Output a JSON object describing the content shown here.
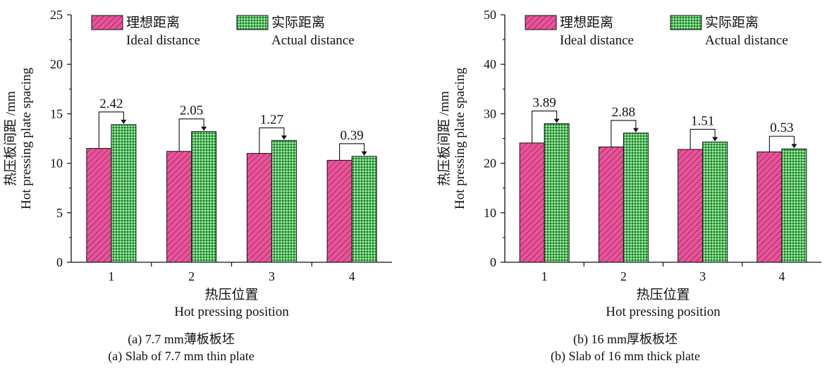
{
  "colors": {
    "ideal": "#e8549a",
    "actual": "#39b54a",
    "axis": "#111111"
  },
  "chart_data": [
    {
      "type": "bar",
      "categories": [
        "1",
        "2",
        "3",
        "4"
      ],
      "ylim": [
        0,
        25
      ],
      "yticks": [
        "0",
        "5",
        "10",
        "15",
        "20",
        "25"
      ],
      "ylabel_cn": "热压板间距 /mm",
      "ylabel_en": "Hot pressing plate spacing",
      "xlabel_cn": "热压位置",
      "xlabel_en": "Hot pressing position",
      "caption_cn": "(a) 7.7 mm薄板板坯",
      "caption_en": "(a) Slab of 7.7 mm thin plate",
      "legend_position": "top",
      "series": [
        {
          "name_cn": "理想距离",
          "name_en": "Ideal distance",
          "values": [
            11.5,
            11.2,
            11.0,
            10.3
          ]
        },
        {
          "name_cn": "实际距离",
          "name_en": "Actual distance",
          "values": [
            13.9,
            13.2,
            12.3,
            10.7
          ]
        }
      ],
      "annotations": [
        "2.42",
        "2.05",
        "1.27",
        "0.39"
      ]
    },
    {
      "type": "bar",
      "categories": [
        "1",
        "2",
        "3",
        "4"
      ],
      "ylim": [
        0,
        50
      ],
      "yticks": [
        "0",
        "10",
        "20",
        "30",
        "40",
        "50"
      ],
      "ylabel_cn": "热压板间距 /mm",
      "ylabel_en": "Hot pressing plate spacing",
      "xlabel_cn": "热压位置",
      "xlabel_en": "Hot pressing position",
      "caption_cn": "(b) 16 mm厚板板坯",
      "caption_en": "(b) Slab of 16 mm thick plate",
      "legend_position": "top",
      "series": [
        {
          "name_cn": "理想距离",
          "name_en": "Ideal distance",
          "values": [
            24.1,
            23.3,
            22.8,
            22.3
          ]
        },
        {
          "name_cn": "实际距离",
          "name_en": "Actual distance",
          "values": [
            28.0,
            26.1,
            24.3,
            22.9
          ]
        }
      ],
      "annotations": [
        "3.89",
        "2.88",
        "1.51",
        "0.53"
      ]
    }
  ]
}
